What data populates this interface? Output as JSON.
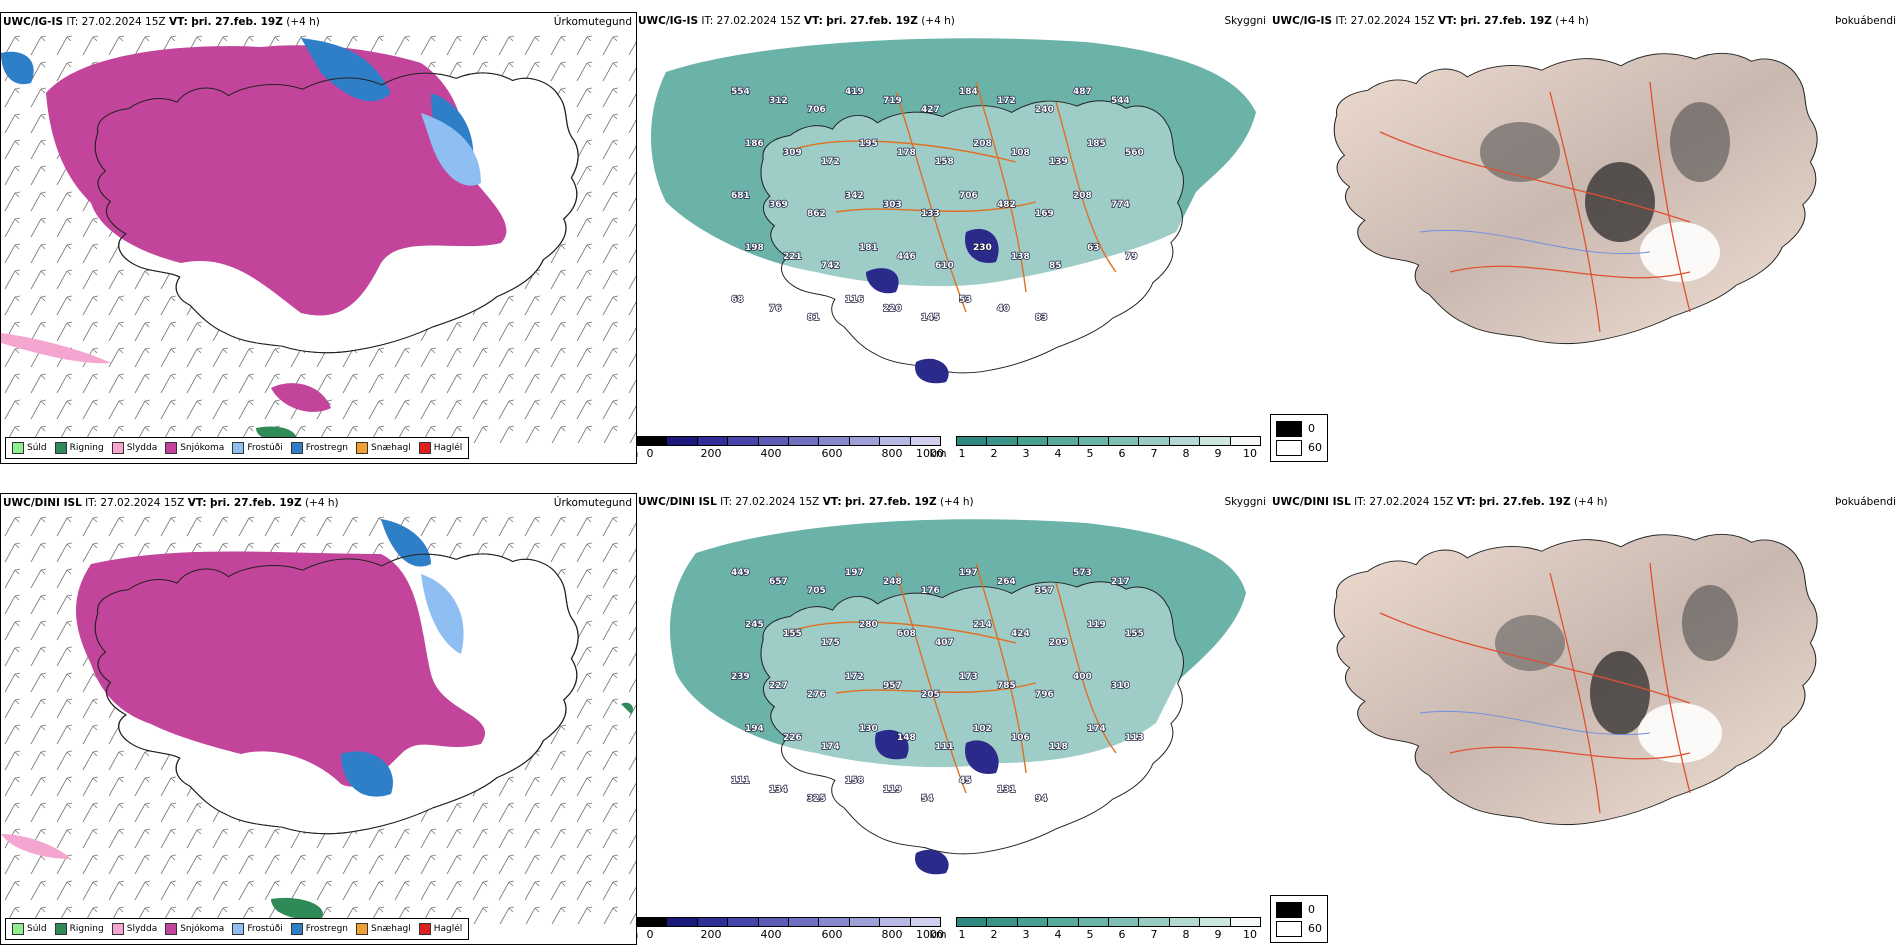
{
  "header_it": "IT: 27.02.2024 15Z",
  "header_vt_label": "VT:",
  "header_vt_value": "þri. 27.feb. 19Z",
  "header_lead": "(+4 h)",
  "models": [
    "UWC/IG-IS",
    "UWC/DINI ISL"
  ],
  "panel_types": {
    "precip": "Úrkomutegund",
    "cloud": "Skyggni",
    "fog": "Þokuábendi"
  },
  "precip_legend": [
    {
      "label": "Súld",
      "color": "#90ee90"
    },
    {
      "label": "Rigning",
      "color": "#2e8b57"
    },
    {
      "label": "Slydda",
      "color": "#f4a6d0"
    },
    {
      "label": "Snjókoma",
      "color": "#c2449b"
    },
    {
      "label": "Frostúði",
      "color": "#8fbff2"
    },
    {
      "label": "Frostregn",
      "color": "#2f7fc8"
    },
    {
      "label": "Snæhagl",
      "color": "#f0a030"
    },
    {
      "label": "Haglél",
      "color": "#e02020"
    }
  ],
  "cloudbase_scale": {
    "unit": "m",
    "ticks": [
      "0",
      "200",
      "400",
      "600",
      "800",
      "1000"
    ]
  },
  "visibility_scale": {
    "unit": "km",
    "ticks": [
      "1",
      "2",
      "3",
      "4",
      "5",
      "6",
      "7",
      "8",
      "9",
      "10"
    ]
  },
  "fog_legend": [
    {
      "label": "0",
      "color": "#000000"
    },
    {
      "label": "60",
      "color": "#ffffff"
    }
  ],
  "cloud_labels": [
    [
      "554",
      "312",
      "706",
      "419",
      "719",
      "427",
      "184",
      "172",
      "240",
      "487",
      "544",
      "186",
      "309",
      "172",
      "195",
      "178",
      "158",
      "208",
      "108",
      "139",
      "185",
      "560",
      "681",
      "369",
      "862",
      "342",
      "303",
      "133",
      "706",
      "482",
      "169",
      "208",
      "774",
      "198",
      "221",
      "742",
      "181",
      "446",
      "610",
      "230",
      "138",
      "85",
      "63",
      "79",
      "68",
      "76",
      "81",
      "116",
      "220",
      "145",
      "53",
      "40",
      "83"
    ],
    [
      "449",
      "657",
      "705",
      "197",
      "248",
      "176",
      "197",
      "264",
      "357",
      "573",
      "217",
      "245",
      "155",
      "175",
      "280",
      "608",
      "407",
      "214",
      "424",
      "209",
      "119",
      "155",
      "239",
      "227",
      "276",
      "172",
      "957",
      "205",
      "173",
      "785",
      "796",
      "400",
      "310",
      "194",
      "226",
      "174",
      "130",
      "148",
      "111",
      "102",
      "106",
      "118",
      "174",
      "113",
      "111",
      "134",
      "325",
      "158",
      "119",
      "54",
      "45",
      "131",
      "94"
    ]
  ]
}
